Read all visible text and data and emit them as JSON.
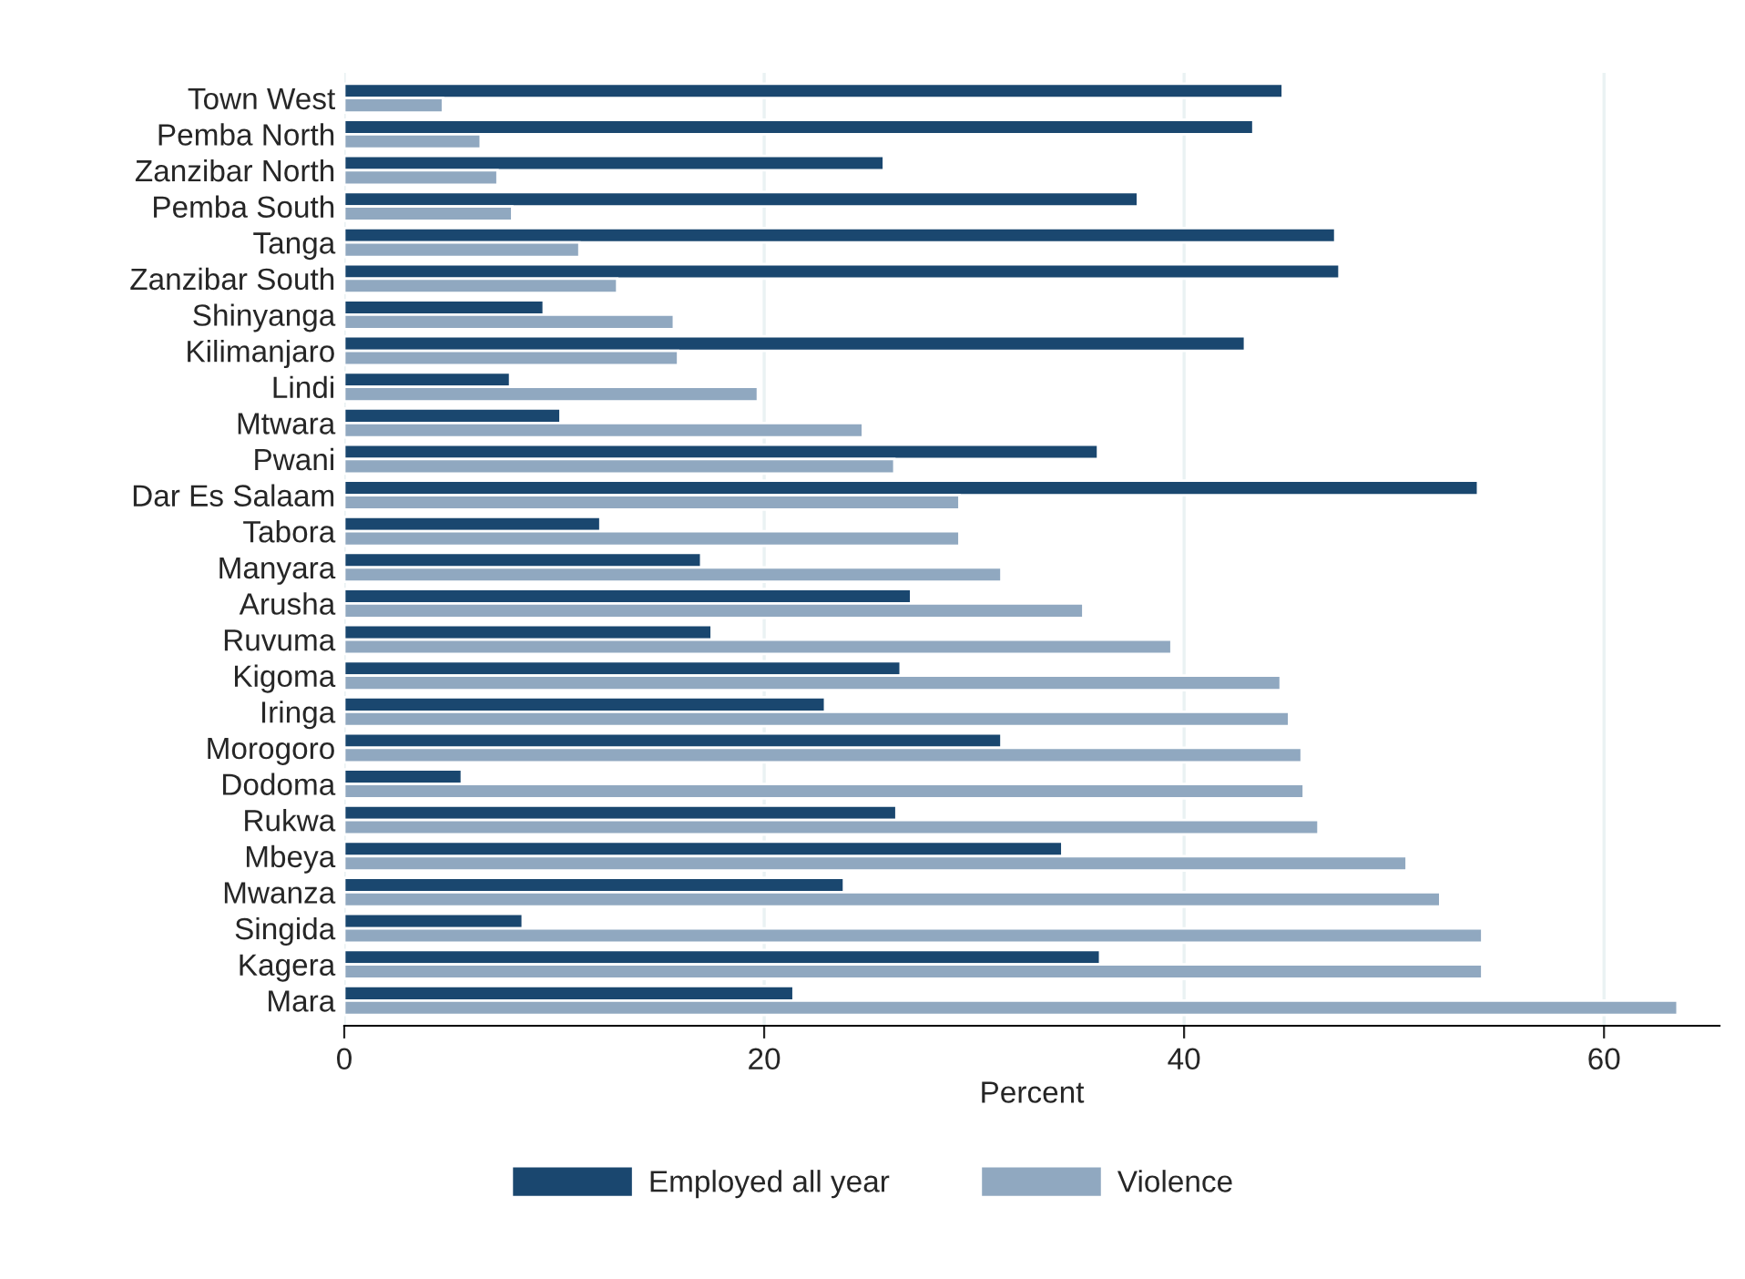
{
  "chart_data": {
    "type": "bar",
    "orientation": "horizontal",
    "xlabel": "Percent",
    "categories": [
      "Town West",
      "Pemba North",
      "Zanzibar North",
      "Pemba South",
      "Tanga",
      "Zanzibar South",
      "Shinyanga",
      "Kilimanjaro",
      "Lindi",
      "Mtwara",
      "Pwani",
      "Dar Es Salaam",
      "Tabora",
      "Manyara",
      "Arusha",
      "Ruvuma",
      "Kigoma",
      "Iringa",
      "Morogoro",
      "Dodoma",
      "Rukwa",
      "Mbeya",
      "Mwanza",
      "Singida",
      "Kagera",
      "Mara"
    ],
    "series": [
      {
        "name": "Employed all year",
        "color": "#1a476f",
        "values": [
          44.7,
          43.3,
          25.7,
          37.8,
          47.2,
          47.4,
          9.5,
          42.9,
          7.9,
          10.3,
          35.9,
          54.0,
          12.2,
          17.0,
          27.0,
          17.5,
          26.5,
          22.9,
          31.3,
          5.6,
          26.3,
          34.2,
          23.8,
          8.5,
          36.0,
          21.4
        ]
      },
      {
        "name": "Violence",
        "color": "#90a8c0",
        "values": [
          4.7,
          6.5,
          7.3,
          8.0,
          11.2,
          13.0,
          15.7,
          15.9,
          19.7,
          24.7,
          26.2,
          29.3,
          29.3,
          31.3,
          35.2,
          39.4,
          44.6,
          45.0,
          45.6,
          45.7,
          46.4,
          50.6,
          52.2,
          54.2,
          54.2,
          63.5
        ]
      }
    ],
    "xlim": [
      0,
      65.5
    ],
    "xticks": [
      0,
      20,
      40,
      60
    ],
    "grid": "x",
    "legend": "bottom"
  }
}
